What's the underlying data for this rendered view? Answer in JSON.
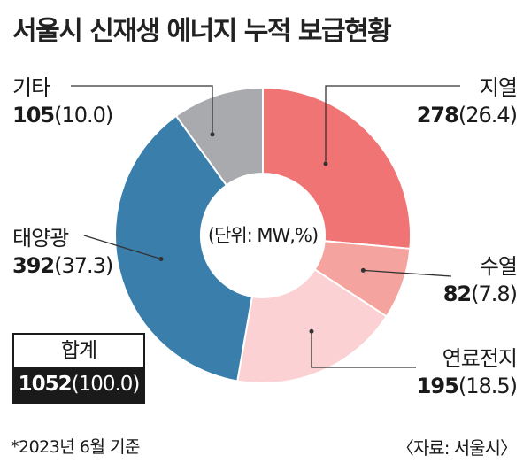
{
  "title": "서울시 신재생 에너지 누적 보급현황",
  "center_unit": "(단위: MW,%)",
  "total": {
    "label": "합계",
    "value": "1052",
    "percent": "(100.0)"
  },
  "footnote": "*2023년 6월 기준",
  "source": "〈자료: 서울시〉",
  "chart_data": {
    "type": "pie",
    "donut": true,
    "unit": "MW,%",
    "slices": [
      {
        "name": "지열",
        "value": 278,
        "value_text": "278",
        "percent_text": "(26.4)",
        "color": "#f07474"
      },
      {
        "name": "수열",
        "value": 82,
        "value_text": "82",
        "percent_text": "(7.8)",
        "color": "#f4a39e"
      },
      {
        "name": "연료전지",
        "value": 195,
        "value_text": "195",
        "percent_text": "(18.5)",
        "color": "#fbd1d3"
      },
      {
        "name": "태양광",
        "value": 392,
        "value_text": "392",
        "percent_text": "(37.3)",
        "color": "#3a7fac"
      },
      {
        "name": "기타",
        "value": 105,
        "value_text": "105",
        "percent_text": "(10.0)",
        "color": "#a9aaad"
      }
    ]
  }
}
